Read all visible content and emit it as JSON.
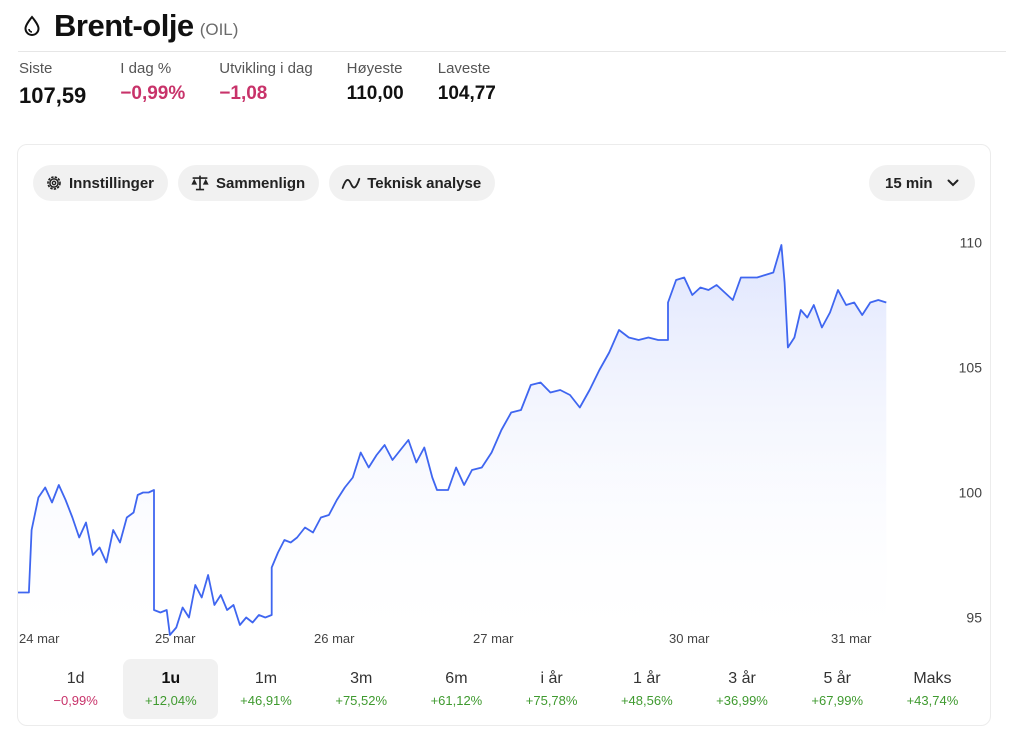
{
  "header": {
    "title": "Brent-olje",
    "ticker": "(OIL)"
  },
  "stats": [
    {
      "label": "Siste",
      "value": "107,59",
      "tone": "normal"
    },
    {
      "label": "I dag %",
      "value": "−0,99%",
      "tone": "neg"
    },
    {
      "label": "Utvikling i dag",
      "value": "−1,08",
      "tone": "neg"
    },
    {
      "label": "Høyeste",
      "value": "110,00",
      "tone": "normal"
    },
    {
      "label": "Laveste",
      "value": "104,77",
      "tone": "normal"
    }
  ],
  "toolbar": {
    "settings_label": "Innstillinger",
    "compare_label": "Sammenlign",
    "technical_label": "Teknisk analyse",
    "interval_value": "15 min"
  },
  "colors": {
    "line": "#3f66f0",
    "negative": "#c8336a",
    "positive": "#3f9a2f"
  },
  "chart_data": {
    "type": "area",
    "x_labels": [
      "24 mar",
      "25 mar",
      "26 mar",
      "27 mar",
      "30 mar",
      "31 mar"
    ],
    "y_ticks": [
      95,
      100,
      105,
      110
    ],
    "ylim": [
      93.5,
      111.5
    ],
    "grid": false,
    "series": [
      {
        "values": [
          [
            0.0,
            96.0
          ],
          [
            0.08,
            96.0
          ],
          [
            0.1,
            98.5
          ],
          [
            0.15,
            99.8
          ],
          [
            0.2,
            100.2
          ],
          [
            0.25,
            99.6
          ],
          [
            0.3,
            100.3
          ],
          [
            0.35,
            99.7
          ],
          [
            0.4,
            99.0
          ],
          [
            0.45,
            98.2
          ],
          [
            0.5,
            98.8
          ],
          [
            0.55,
            97.5
          ],
          [
            0.6,
            97.8
          ],
          [
            0.65,
            97.2
          ],
          [
            0.7,
            98.5
          ],
          [
            0.75,
            98.0
          ],
          [
            0.8,
            99.0
          ],
          [
            0.85,
            99.2
          ],
          [
            0.88,
            99.9
          ],
          [
            0.92,
            100.0
          ],
          [
            0.96,
            100.0
          ],
          [
            1.0,
            100.1
          ],
          [
            1.0,
            95.3
          ],
          [
            1.04,
            95.2
          ],
          [
            1.08,
            95.3
          ],
          [
            1.1,
            94.3
          ],
          [
            1.14,
            94.6
          ],
          [
            1.18,
            95.4
          ],
          [
            1.22,
            95.0
          ],
          [
            1.26,
            96.3
          ],
          [
            1.3,
            95.8
          ],
          [
            1.34,
            96.7
          ],
          [
            1.38,
            95.5
          ],
          [
            1.42,
            95.9
          ],
          [
            1.46,
            95.3
          ],
          [
            1.5,
            95.5
          ],
          [
            1.54,
            94.7
          ],
          [
            1.58,
            95.0
          ],
          [
            1.62,
            94.8
          ],
          [
            1.66,
            95.1
          ],
          [
            1.7,
            95.0
          ],
          [
            1.74,
            95.1
          ],
          [
            1.74,
            97.0
          ],
          [
            1.78,
            97.6
          ],
          [
            1.82,
            98.1
          ],
          [
            1.86,
            98.0
          ],
          [
            1.9,
            98.2
          ],
          [
            1.95,
            98.6
          ],
          [
            2.0,
            98.4
          ],
          [
            2.05,
            99.0
          ],
          [
            2.1,
            99.1
          ],
          [
            2.15,
            99.7
          ],
          [
            2.2,
            100.2
          ],
          [
            2.25,
            100.6
          ],
          [
            2.3,
            101.6
          ],
          [
            2.35,
            101.0
          ],
          [
            2.4,
            101.5
          ],
          [
            2.45,
            101.9
          ],
          [
            2.5,
            101.3
          ],
          [
            2.55,
            101.7
          ],
          [
            2.6,
            102.1
          ],
          [
            2.65,
            101.2
          ],
          [
            2.7,
            101.8
          ],
          [
            2.75,
            100.6
          ],
          [
            2.78,
            100.1
          ],
          [
            2.85,
            100.1
          ],
          [
            2.9,
            101.0
          ],
          [
            2.95,
            100.3
          ],
          [
            3.0,
            100.9
          ],
          [
            3.05,
            101.0
          ],
          [
            3.1,
            101.6
          ],
          [
            3.15,
            102.5
          ],
          [
            3.2,
            103.2
          ],
          [
            3.25,
            103.3
          ],
          [
            3.3,
            104.3
          ],
          [
            3.35,
            104.4
          ],
          [
            3.4,
            104.0
          ],
          [
            3.45,
            104.1
          ],
          [
            3.5,
            103.9
          ],
          [
            3.55,
            103.4
          ],
          [
            3.6,
            104.1
          ],
          [
            3.65,
            104.9
          ],
          [
            3.7,
            105.6
          ],
          [
            3.75,
            106.5
          ],
          [
            3.8,
            106.2
          ],
          [
            3.85,
            106.1
          ],
          [
            3.9,
            106.2
          ],
          [
            3.95,
            106.1
          ],
          [
            4.0,
            106.1
          ],
          [
            4.0,
            107.6
          ],
          [
            4.05,
            108.5
          ],
          [
            4.1,
            108.6
          ],
          [
            4.15,
            107.9
          ],
          [
            4.2,
            108.2
          ],
          [
            4.25,
            108.1
          ],
          [
            4.3,
            108.3
          ],
          [
            4.35,
            108.0
          ],
          [
            4.4,
            107.7
          ],
          [
            4.45,
            108.6
          ],
          [
            4.5,
            108.6
          ],
          [
            4.55,
            108.6
          ],
          [
            4.6,
            108.7
          ],
          [
            4.65,
            108.8
          ],
          [
            4.7,
            109.9
          ],
          [
            4.72,
            108.4
          ],
          [
            4.74,
            105.8
          ],
          [
            4.78,
            106.2
          ],
          [
            4.82,
            107.3
          ],
          [
            4.86,
            107.0
          ],
          [
            4.9,
            107.5
          ],
          [
            4.95,
            106.6
          ],
          [
            5.0,
            107.2
          ],
          [
            5.05,
            108.1
          ],
          [
            5.1,
            107.5
          ],
          [
            5.15,
            107.6
          ],
          [
            5.2,
            107.1
          ],
          [
            5.25,
            107.6
          ],
          [
            5.3,
            107.7
          ],
          [
            5.35,
            107.6
          ]
        ]
      }
    ]
  },
  "periods": [
    {
      "label": "1d",
      "change": "−0,99%",
      "tone": "neg",
      "active": false
    },
    {
      "label": "1u",
      "change": "+12,04%",
      "tone": "pos",
      "active": true
    },
    {
      "label": "1m",
      "change": "+46,91%",
      "tone": "pos",
      "active": false
    },
    {
      "label": "3m",
      "change": "+75,52%",
      "tone": "pos",
      "active": false
    },
    {
      "label": "6m",
      "change": "+61,12%",
      "tone": "pos",
      "active": false
    },
    {
      "label": "i år",
      "change": "+75,78%",
      "tone": "pos",
      "active": false
    },
    {
      "label": "1 år",
      "change": "+48,56%",
      "tone": "pos",
      "active": false
    },
    {
      "label": "3 år",
      "change": "+36,99%",
      "tone": "pos",
      "active": false
    },
    {
      "label": "5 år",
      "change": "+67,99%",
      "tone": "pos",
      "active": false
    },
    {
      "label": "Maks",
      "change": "+43,74%",
      "tone": "pos",
      "active": false
    }
  ]
}
